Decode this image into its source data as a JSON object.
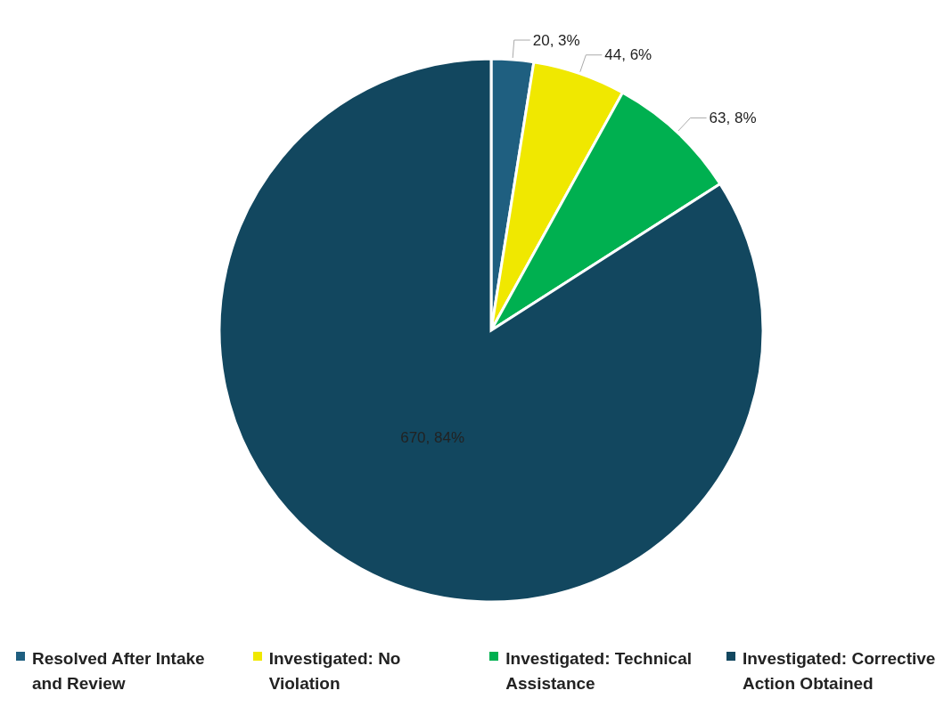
{
  "chart_data": {
    "type": "pie",
    "categories": [
      "Resolved After Intake and Review",
      "Investigated: No Violation",
      "Investigated: Technical Assistance",
      "Investigated: Corrective Action Obtained"
    ],
    "values": [
      20,
      44,
      63,
      670
    ],
    "colors": [
      "#1f5f80",
      "#f0e800",
      "#00b050",
      "#12475f"
    ],
    "value_labels": [
      "20, 3%",
      "44, 6%",
      "63, 8%",
      "670, 84%"
    ],
    "legend": "bottom"
  }
}
